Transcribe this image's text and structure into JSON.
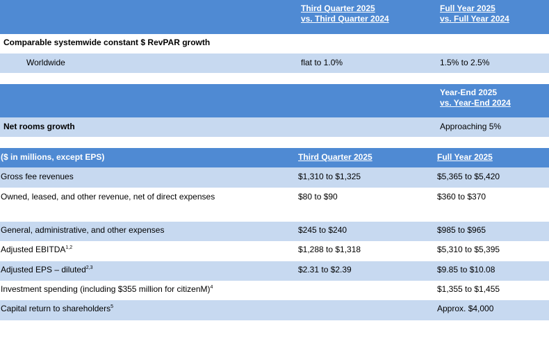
{
  "revpar": {
    "header_q_line1": "Third Quarter 2025",
    "header_q_line2": "vs. Third Quarter 2024",
    "header_fy_line1": "Full Year 2025",
    "header_fy_line2": "vs. Full Year 2024",
    "section_label": "Comparable systemwide constant $ RevPAR growth",
    "row_label": "Worldwide",
    "row_q": "flat to 1.0%",
    "row_fy": "1.5% to 2.5%"
  },
  "rooms": {
    "header_line1": "Year-End 2025",
    "header_line2": "vs. Year-End 2024",
    "label": "Net rooms growth",
    "value": "Approaching 5%"
  },
  "financials": {
    "header_label": "($ in millions, except EPS)",
    "header_q": "Third Quarter 2025",
    "header_fy": "Full Year 2025",
    "rows": [
      {
        "label": "Gross fee revenues",
        "sup": "",
        "q": "$1,310 to $1,325",
        "fy": "$5,365 to $5,420"
      },
      {
        "label": "Owned, leased, and other revenue, net of direct expenses",
        "sup": "",
        "q": "$80 to $90",
        "fy": "$360 to $370"
      },
      {
        "label": "General, administrative, and other expenses",
        "sup": "",
        "q": "$245 to $240",
        "fy": "$985 to $965"
      },
      {
        "label": "Adjusted EBITDA",
        "sup": "1,2",
        "q": "$1,288 to $1,318",
        "fy": "$5,310 to $5,395"
      },
      {
        "label": "Adjusted EPS – diluted",
        "sup": "2,3",
        "q": "$2.31 to $2.39",
        "fy": "$9.85 to $10.08"
      },
      {
        "label": "Investment spending (including $355 million for citizenM)",
        "sup": "4",
        "q": "",
        "fy": "$1,355 to $1,455"
      },
      {
        "label": "Capital return to shareholders",
        "sup": "5",
        "q": "",
        "fy": "Approx. $4,000"
      }
    ]
  }
}
